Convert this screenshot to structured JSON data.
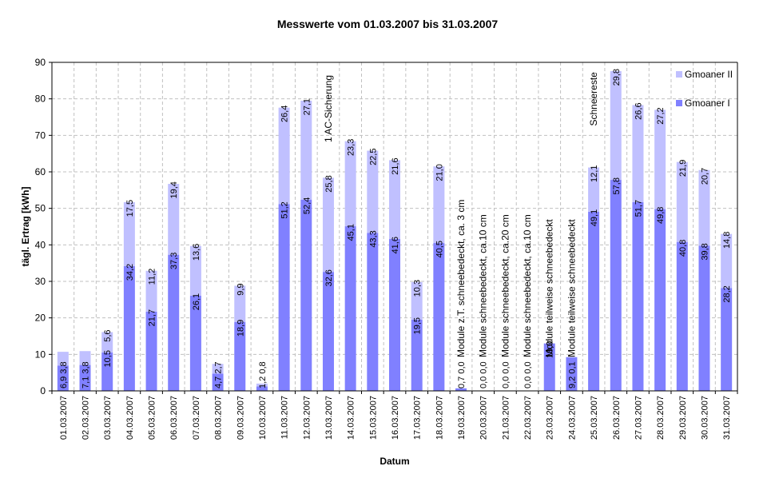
{
  "title": "Messwerte vom 01.03.2007 bis 31.03.2007",
  "colors": {
    "series1": "#8080ff",
    "series2": "#c0c0ff",
    "grid": "#c0c0c0",
    "axis": "#000000"
  },
  "chart_data": {
    "type": "bar",
    "stacked": true,
    "title": "Messwerte vom 01.03.2007 bis 31.03.2007",
    "xlabel": "Datum",
    "ylabel": "tägl. Ertrag [kWh]",
    "ylim": [
      0,
      90
    ],
    "yticks": [
      0,
      10,
      20,
      30,
      40,
      50,
      60,
      70,
      80,
      90
    ],
    "grid": true,
    "legend_position": "top-right",
    "categories": [
      "01.03.2007",
      "02.03.2007",
      "03.03.2007",
      "04.03.2007",
      "05.03.2007",
      "06.03.2007",
      "07.03.2007",
      "08.03.2007",
      "09.03.2007",
      "10.03.2007",
      "11.03.2007",
      "12.03.2007",
      "13.03.2007",
      "14.03.2007",
      "15.03.2007",
      "16.03.2007",
      "17.03.2007",
      "18.03.2007",
      "19.03.2007",
      "20.03.2007",
      "21.03.2007",
      "22.03.2007",
      "23.03.2007",
      "24.03.2007",
      "25.03.2007",
      "26.03.2007",
      "27.03.2007",
      "28.03.2007",
      "29.03.2007",
      "30.03.2007",
      "31.03.2007"
    ],
    "series": [
      {
        "name": "Gmoaner I",
        "color": "#8080ff",
        "values": [
          6.9,
          7.1,
          10.5,
          34.2,
          21.7,
          37.3,
          26.1,
          4.7,
          18.9,
          1.2,
          51.2,
          52.4,
          32.6,
          45.1,
          43.3,
          41.6,
          19.5,
          40.5,
          0.7,
          0.0,
          0.0,
          0.0,
          13.0,
          9.2,
          49.1,
          57.8,
          51.7,
          49.8,
          40.8,
          39.8,
          28.2
        ]
      },
      {
        "name": "Gmoaner II",
        "color": "#c0c0ff",
        "values": [
          3.8,
          3.8,
          5.6,
          17.5,
          11.2,
          19.4,
          13.6,
          2.7,
          9.9,
          0.8,
          26.4,
          27.1,
          25.8,
          23.3,
          22.5,
          21.6,
          10.3,
          21.0,
          0.0,
          0.0,
          0.0,
          0.0,
          0.0,
          0.1,
          12.1,
          29.8,
          26.6,
          27.2,
          21.9,
          20.7,
          14.8
        ]
      }
    ],
    "annotations": [
      {
        "index": 12,
        "text": "1 AC-Sicherung"
      },
      {
        "index": 18,
        "text": "Module z.T. schneebedeckt, ca. 3 cm"
      },
      {
        "index": 19,
        "text": "Module schneebedeckt, ca.10 cm"
      },
      {
        "index": 20,
        "text": "Module schneebedeckt, ca.20 cm"
      },
      {
        "index": 21,
        "text": "Module schneebedeckt, ca.10 cm"
      },
      {
        "index": 22,
        "text": "Module teilweise schneebedeckt"
      },
      {
        "index": 23,
        "text": "Module teilweise schneebedeckt"
      },
      {
        "index": 24,
        "text": "Schneereste"
      }
    ]
  }
}
